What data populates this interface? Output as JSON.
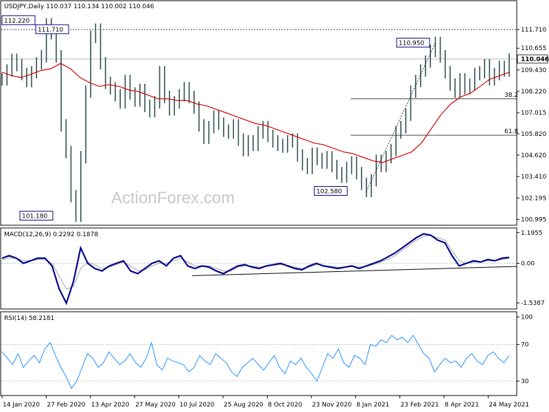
{
  "chart_data": [
    {
      "type": "line",
      "header": "USDJPY,Daily",
      "ohlc": "110.037 110.134 110.002 110.046",
      "watermark": "ActionForex.com",
      "ylim": [
        100.7,
        113.3
      ],
      "y_ticks": [
        "111.710",
        "110.655",
        "109.430",
        "108.220",
        "107.015",
        "105.820",
        "104.620",
        "103.410",
        "102.195",
        "100.995"
      ],
      "y_tick_values": [
        111.71,
        110.655,
        109.43,
        108.22,
        107.015,
        105.82,
        104.62,
        103.41,
        102.195,
        100.995
      ],
      "last_price": "110.046",
      "x_ticks": [
        "14 Jan 2020",
        "27 Feb 2020",
        "13 Apr 2020",
        "27 May 2020",
        "10 Jul 2020",
        "25 Aug 2020",
        "8 Oct 2020",
        "23 Nov 2020",
        "8 Jan 2021",
        "23 Feb 2021",
        "8 Apr 2021",
        "24 May 2021"
      ],
      "price": [
        108.9,
        109.4,
        110.0,
        109.7,
        109.2,
        108.8,
        109.3,
        109.8,
        110.2,
        112.0,
        111.5,
        110.2,
        106.3,
        104.8,
        102.3,
        101.2,
        104.5,
        108.2,
        111.3,
        111.7,
        109.8,
        108.7,
        108.4,
        108.0,
        107.6,
        108.8,
        108.1,
        107.7,
        108.3,
        107.4,
        107.1,
        107.6,
        109.3,
        107.9,
        107.2,
        107.6,
        108.0,
        108.4,
        107.9,
        107.3,
        106.3,
        105.6,
        106.2,
        106.8,
        106.4,
        106.0,
        105.9,
        106.3,
        105.5,
        104.9,
        105.4,
        105.2,
        105.9,
        106.2,
        105.7,
        105.4,
        105.2,
        105.1,
        105.4,
        105.5,
        104.6,
        104.1,
        103.9,
        104.7,
        104.4,
        104.2,
        104.5,
        104.0,
        103.6,
        103.4,
        103.9,
        104.2,
        103.6,
        103.0,
        102.6,
        103.2,
        104.3,
        104.0,
        104.5,
        104.9,
        105.9,
        106.2,
        106.9,
        108.2,
        108.8,
        109.4,
        109.9,
        110.5,
        110.95,
        110.2,
        109.3,
        108.6,
        108.2,
        108.9,
        108.4,
        108.6,
        109.2,
        109.3,
        109.7,
        108.9,
        109.2,
        109.6,
        109.4,
        110.0
      ],
      "ma": [
        109.3,
        109.1,
        109.0,
        109.2,
        109.4,
        109.5,
        109.8,
        109.5,
        109.0,
        108.7,
        108.5,
        108.6,
        108.5,
        108.3,
        108.2,
        108.0,
        107.8,
        107.8,
        107.7,
        107.7,
        107.5,
        107.4,
        107.2,
        107.0,
        106.8,
        106.6,
        106.4,
        106.3,
        106.1,
        105.9,
        105.7,
        105.5,
        105.3,
        105.2,
        105.0,
        104.8,
        104.7,
        104.5,
        104.3,
        104.2,
        104.4,
        104.6,
        104.8,
        105.3,
        106.1,
        106.9,
        107.5,
        107.9,
        108.1,
        108.5,
        108.9,
        109.1,
        109.3
      ],
      "fib": [
        {
          "label": "38.2",
          "value": 107.8
        },
        {
          "label": "61.8",
          "value": 105.74
        }
      ],
      "annotations": [
        {
          "text": "112.220",
          "value": 112.22
        },
        {
          "text": "111.710",
          "value": 111.71
        },
        {
          "text": "101.180",
          "value": 101.18
        },
        {
          "text": "110.950",
          "value": 110.95
        },
        {
          "text": "102.580",
          "value": 102.58
        }
      ],
      "resistance_line": 111.71
    },
    {
      "type": "line",
      "header": "MACD(12,26,9) 0.2292 0.1878",
      "ylim": [
        -1.75,
        1.35
      ],
      "y_ticks": [
        "1.1955",
        "0.00",
        "-1.5387"
      ],
      "y_tick_values": [
        1.1955,
        0.0,
        -1.5387
      ],
      "macd": [
        0.2,
        0.3,
        0.2,
        0.0,
        0.1,
        0.2,
        0.2,
        -0.1,
        -1.0,
        -1.55,
        -0.7,
        0.6,
        0.0,
        -0.2,
        -0.3,
        -0.1,
        0.0,
        0.1,
        -0.3,
        -0.4,
        -0.2,
        0.0,
        0.1,
        -0.1,
        0.2,
        0.3,
        -0.1,
        -0.2,
        -0.1,
        -0.15,
        -0.3,
        -0.4,
        -0.25,
        -0.1,
        -0.05,
        -0.15,
        -0.2,
        -0.1,
        -0.05,
        0.0,
        -0.1,
        -0.2,
        -0.25,
        -0.1,
        0.0,
        -0.1,
        -0.15,
        -0.2,
        -0.15,
        -0.1,
        -0.2,
        -0.1,
        0.0,
        0.1,
        0.25,
        0.4,
        0.6,
        0.8,
        1.0,
        1.15,
        1.1,
        0.9,
        0.8,
        0.3,
        -0.1,
        0.0,
        0.1,
        0.05,
        0.15,
        0.1,
        0.2,
        0.23
      ],
      "signal": [
        0.15,
        0.2,
        0.2,
        0.1,
        0.1,
        0.15,
        0.15,
        0.0,
        -0.5,
        -1.0,
        -0.9,
        -0.2,
        0.05,
        -0.05,
        -0.2,
        -0.15,
        -0.05,
        0.05,
        -0.1,
        -0.3,
        -0.25,
        -0.1,
        0.0,
        0.0,
        0.1,
        0.2,
        0.05,
        -0.1,
        -0.1,
        -0.1,
        -0.2,
        -0.3,
        -0.3,
        -0.15,
        -0.1,
        -0.1,
        -0.15,
        -0.12,
        -0.08,
        -0.05,
        -0.08,
        -0.15,
        -0.2,
        -0.15,
        -0.05,
        -0.08,
        -0.12,
        -0.15,
        -0.15,
        -0.12,
        -0.15,
        -0.12,
        -0.05,
        0.05,
        0.15,
        0.3,
        0.5,
        0.7,
        0.9,
        1.05,
        1.1,
        1.0,
        0.9,
        0.5,
        0.1,
        0.0,
        0.05,
        0.05,
        0.1,
        0.1,
        0.15,
        0.19
      ],
      "trendline": [
        [
          0.345,
          -0.48
        ],
        [
          1.0,
          -0.12
        ]
      ]
    },
    {
      "type": "line",
      "header": "RSI(14) 58.2181",
      "ylim": [
        15,
        105
      ],
      "y_ticks": [
        "100",
        "70",
        "30"
      ],
      "y_tick_values": [
        100,
        70,
        30
      ],
      "rsi": [
        62,
        55,
        48,
        60,
        45,
        52,
        58,
        50,
        65,
        72,
        58,
        45,
        35,
        22,
        30,
        45,
        60,
        55,
        45,
        50,
        62,
        55,
        48,
        52,
        60,
        50,
        45,
        55,
        72,
        48,
        42,
        55,
        52,
        50,
        48,
        40,
        45,
        58,
        52,
        48,
        60,
        55,
        50,
        40,
        35,
        45,
        50,
        55,
        48,
        42,
        50,
        58,
        45,
        38,
        52,
        48,
        55,
        45,
        38,
        30,
        45,
        60,
        55,
        65,
        50,
        45,
        58,
        55,
        48,
        70,
        68,
        75,
        72,
        80,
        75,
        78,
        72,
        80,
        70,
        60,
        55,
        40,
        48,
        55,
        50,
        52,
        45,
        55,
        60,
        52,
        48,
        58,
        62,
        55,
        50,
        58
      ]
    }
  ]
}
